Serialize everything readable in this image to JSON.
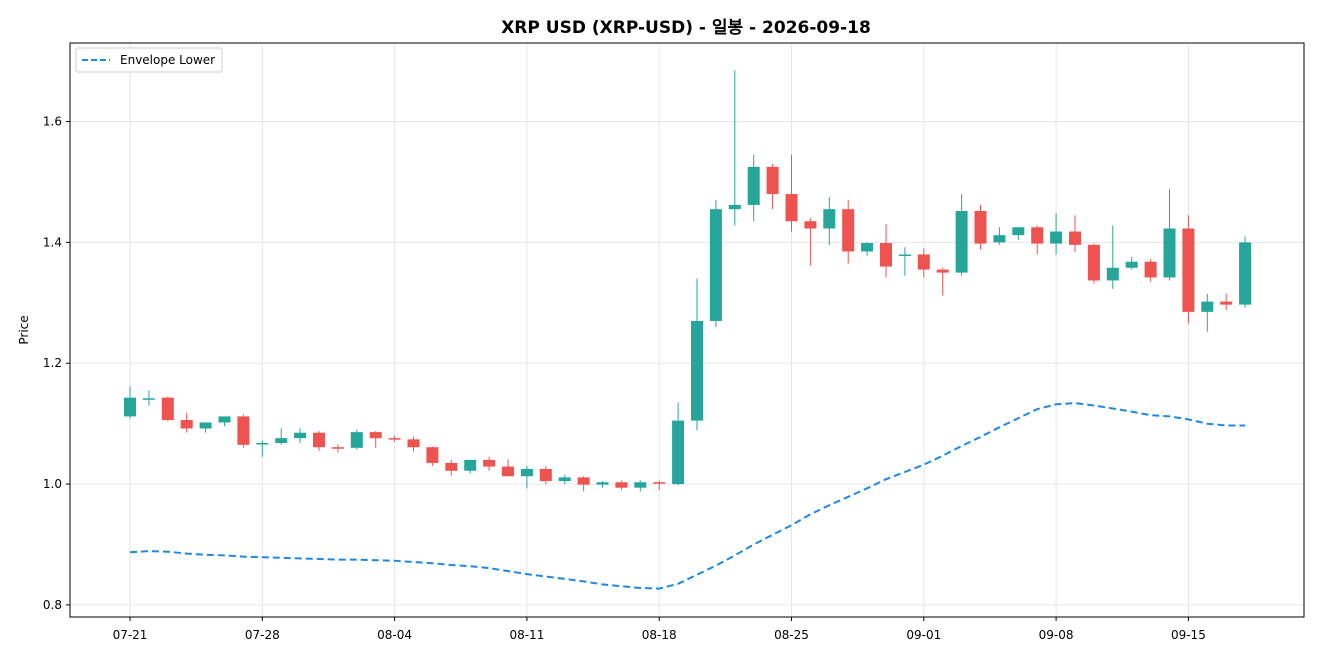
{
  "chart_data": {
    "type": "candlestick",
    "title": "XRP USD (XRP-USD) - 일봉 - 2026-09-18",
    "xlabel": "",
    "ylabel": "Price",
    "ylim": [
      0.78,
      1.73
    ],
    "yticks": [
      0.8,
      1.0,
      1.2,
      1.4,
      1.6
    ],
    "ytick_labels": [
      "0.8",
      "1.0",
      "1.2",
      "1.4",
      "1.6"
    ],
    "xtick_labels": [
      "07-21",
      "07-28",
      "08-04",
      "08-11",
      "08-18",
      "08-25",
      "09-01",
      "09-08",
      "09-15"
    ],
    "xtick_index": [
      0,
      7,
      14,
      21,
      28,
      35,
      42,
      49,
      56
    ],
    "grid": true,
    "legend_position": "top-left",
    "colors": {
      "up": "#26a69a",
      "down": "#ef5350",
      "envelope": "#1e88e5"
    },
    "dates": [
      "07-21",
      "07-22",
      "07-23",
      "07-24",
      "07-25",
      "07-26",
      "07-27",
      "07-28",
      "07-29",
      "07-30",
      "07-31",
      "08-01",
      "08-02",
      "08-03",
      "08-04",
      "08-05",
      "08-06",
      "08-07",
      "08-08",
      "08-09",
      "08-10",
      "08-11",
      "08-12",
      "08-13",
      "08-14",
      "08-15",
      "08-16",
      "08-17",
      "08-18",
      "08-19",
      "08-20",
      "08-21",
      "08-22",
      "08-23",
      "08-24",
      "08-25",
      "08-26",
      "08-27",
      "08-28",
      "08-29",
      "08-30",
      "08-31",
      "09-01",
      "09-02",
      "09-03",
      "09-04",
      "09-05",
      "09-06",
      "09-07",
      "09-08",
      "09-09",
      "09-10",
      "09-11",
      "09-12",
      "09-13",
      "09-14",
      "09-15",
      "09-16",
      "09-17",
      "09-18"
    ],
    "open": [
      1.112,
      1.142,
      1.143,
      1.106,
      1.092,
      1.102,
      1.112,
      1.068,
      1.068,
      1.076,
      1.085,
      1.061,
      1.06,
      1.086,
      1.076,
      1.074,
      1.061,
      1.035,
      1.022,
      1.04,
      1.029,
      1.013,
      1.025,
      1.005,
      1.011,
      0.999,
      1.003,
      0.994,
      1.003,
      1.0,
      1.105,
      1.27,
      1.455,
      1.462,
      1.525,
      1.48,
      1.435,
      1.423,
      1.455,
      1.385,
      1.399,
      1.38,
      1.38,
      1.355,
      1.35,
      1.452,
      1.4,
      1.412,
      1.425,
      1.398,
      1.418,
      1.396,
      1.337,
      1.358,
      1.368,
      1.342,
      1.423,
      1.285,
      1.302,
      1.297
    ],
    "high": [
      1.162,
      1.155,
      1.145,
      1.118,
      1.1,
      1.105,
      1.115,
      1.072,
      1.092,
      1.092,
      1.088,
      1.066,
      1.09,
      1.088,
      1.08,
      1.079,
      1.062,
      1.04,
      1.04,
      1.045,
      1.041,
      1.03,
      1.03,
      1.015,
      1.013,
      1.005,
      1.006,
      1.006,
      1.006,
      1.135,
      1.34,
      1.47,
      1.685,
      1.545,
      1.53,
      1.545,
      1.44,
      1.475,
      1.47,
      1.4,
      1.43,
      1.392,
      1.39,
      1.358,
      1.48,
      1.462,
      1.425,
      1.425,
      1.428,
      1.448,
      1.445,
      1.398,
      1.428,
      1.376,
      1.372,
      1.488,
      1.445,
      1.315,
      1.315,
      1.41
    ],
    "low": [
      1.108,
      1.13,
      1.104,
      1.085,
      1.085,
      1.096,
      1.06,
      1.045,
      1.065,
      1.068,
      1.055,
      1.052,
      1.057,
      1.06,
      1.07,
      1.054,
      1.03,
      1.014,
      1.018,
      1.022,
      1.02,
      0.993,
      1.0,
      1.0,
      0.988,
      0.994,
      0.99,
      0.988,
      0.99,
      0.998,
      1.089,
      1.26,
      1.428,
      1.435,
      1.455,
      1.418,
      1.362,
      1.395,
      1.365,
      1.378,
      1.342,
      1.345,
      1.342,
      1.312,
      1.345,
      1.388,
      1.396,
      1.404,
      1.38,
      1.38,
      1.384,
      1.332,
      1.323,
      1.355,
      1.335,
      1.337,
      1.266,
      1.252,
      1.288,
      1.292
    ],
    "close": [
      1.143,
      1.142,
      1.106,
      1.092,
      1.102,
      1.112,
      1.065,
      1.068,
      1.076,
      1.085,
      1.061,
      1.06,
      1.086,
      1.076,
      1.074,
      1.061,
      1.035,
      1.022,
      1.04,
      1.029,
      1.013,
      1.025,
      1.005,
      1.011,
      0.999,
      1.003,
      0.994,
      1.003,
      1.002,
      1.105,
      1.27,
      1.455,
      1.462,
      1.525,
      1.48,
      1.435,
      1.423,
      1.455,
      1.385,
      1.399,
      1.36,
      1.38,
      1.355,
      1.35,
      1.452,
      1.398,
      1.412,
      1.425,
      1.398,
      1.418,
      1.396,
      1.337,
      1.358,
      1.368,
      1.342,
      1.423,
      1.285,
      1.302,
      1.297,
      1.4
    ],
    "series": [
      {
        "name": "Envelope Lower",
        "style": "dashed",
        "values": [
          0.887,
          0.889,
          0.888,
          0.885,
          0.883,
          0.882,
          0.88,
          0.879,
          0.878,
          0.877,
          0.876,
          0.875,
          0.875,
          0.874,
          0.873,
          0.871,
          0.869,
          0.866,
          0.864,
          0.861,
          0.856,
          0.851,
          0.847,
          0.843,
          0.839,
          0.834,
          0.831,
          0.828,
          0.827,
          0.835,
          0.85,
          0.865,
          0.882,
          0.9,
          0.916,
          0.932,
          0.95,
          0.965,
          0.979,
          0.993,
          1.008,
          1.02,
          1.032,
          1.047,
          1.063,
          1.078,
          1.094,
          1.109,
          1.124,
          1.132,
          1.134,
          1.13,
          1.125,
          1.12,
          1.114,
          1.112,
          1.107,
          1.1,
          1.097,
          1.097
        ]
      }
    ]
  }
}
